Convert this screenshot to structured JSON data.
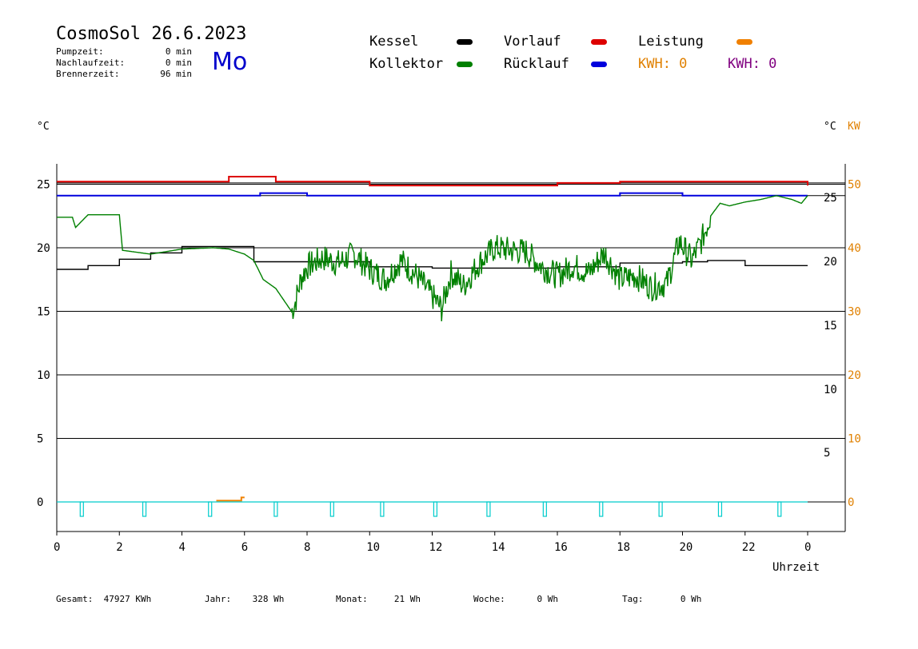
{
  "header": {
    "title": "CosmoSol 26.6.2023",
    "day": "Mo",
    "stats": [
      {
        "label": "Pumpzeit:",
        "value": "0 min"
      },
      {
        "label": "Nachlaufzeit:",
        "value": "0 min"
      },
      {
        "label": "Brennerzeit:",
        "value": "96 min"
      }
    ]
  },
  "legend": {
    "kessel": "Kessel",
    "kollektor": "Kollektor",
    "vorlauf": "Vorlauf",
    "ruecklauf": "Rücklauf",
    "leistung": "Leistung",
    "kwh1": "KWH: 0",
    "kwh2": "KWH: 0",
    "colors": {
      "kessel": "#000000",
      "kollektor": "#008000",
      "vorlauf": "#dd0000",
      "ruecklauf": "#0000dd",
      "leistung": "#f08000",
      "pump": "#00cccc"
    }
  },
  "axes": {
    "left_unit": "°C",
    "right_unit_1": "°C",
    "right_unit_2": "KW",
    "xlabel": "Uhrzeit"
  },
  "footer": [
    {
      "label": "Gesamt:",
      "value": "47927 KWh"
    },
    {
      "label": "Jahr:",
      "value": "328 Wh"
    },
    {
      "label": "Monat:",
      "value": "21 Wh"
    },
    {
      "label": "Woche:",
      "value": "0 Wh"
    },
    {
      "label": "Tag:",
      "value": "0 Wh"
    }
  ],
  "chart_data": {
    "type": "line",
    "xlim": [
      0,
      24
    ],
    "ylim": [
      -2,
      27
    ],
    "x_ticks": [
      "0",
      "2",
      "4",
      "6",
      "8",
      "10",
      "12",
      "14",
      "16",
      "18",
      "20",
      "22",
      "0"
    ],
    "y_ticks_left": [
      "0",
      "5",
      "10",
      "15",
      "20",
      "25"
    ],
    "y_ticks_right_temp": [
      "5",
      "10",
      "15",
      "20",
      "25"
    ],
    "y_ticks_right_kw": [
      "0",
      "10",
      "20",
      "30",
      "40",
      "50"
    ],
    "series": [
      {
        "name": "Vorlauf",
        "x": [
          0,
          3,
          5,
          5.5,
          6.5,
          7,
          9,
          10,
          12,
          13,
          14,
          16,
          18,
          20,
          22,
          24
        ],
        "y": [
          25.2,
          25.2,
          25.2,
          25.6,
          25.6,
          25.2,
          25.2,
          24.9,
          24.9,
          24.9,
          24.9,
          25.1,
          25.2,
          25.2,
          25.2,
          24.9
        ]
      },
      {
        "name": "Rücklauf",
        "x": [
          0,
          5,
          6.5,
          8,
          12,
          16,
          18,
          20,
          22,
          24
        ],
        "y": [
          24.1,
          24.1,
          24.3,
          24.1,
          24.1,
          24.1,
          24.3,
          24.1,
          24.1,
          24.1
        ]
      },
      {
        "name": "Kessel",
        "x": [
          0,
          1,
          2,
          3,
          4,
          5,
          5.9,
          6.3,
          8,
          10,
          12,
          14,
          16,
          18,
          20,
          20.8,
          22,
          24
        ],
        "y": [
          18.3,
          18.6,
          19.1,
          19.6,
          20.1,
          20.1,
          20.1,
          18.9,
          18.9,
          18.5,
          18.4,
          18.4,
          18.5,
          18.8,
          18.9,
          19.0,
          18.6,
          18.6
        ]
      },
      {
        "name": "Kollektor",
        "x": [
          0,
          0.5,
          0.6,
          1,
          2,
          2.1,
          3,
          4,
          5,
          5.5,
          6,
          6.3,
          6.6,
          7,
          7.5,
          7.6,
          7.8,
          8,
          8.5,
          9,
          9.5,
          10,
          10.5,
          11,
          11.5,
          12,
          12.3,
          12.6,
          13,
          13.5,
          14,
          14.5,
          15,
          15.5,
          16,
          16.5,
          17,
          17.5,
          18,
          18.5,
          19,
          19.5,
          19.9,
          20.3,
          20.6,
          20.9,
          21.2,
          21.5,
          22,
          22.5,
          23,
          23.5,
          23.8,
          24
        ],
        "y": [
          22.4,
          22.4,
          21.6,
          22.6,
          22.6,
          19.8,
          19.5,
          19.9,
          20.0,
          19.9,
          19.5,
          19.0,
          17.5,
          16.8,
          15.0,
          15.5,
          17.5,
          18.5,
          19.2,
          18.8,
          19.5,
          18.3,
          17.5,
          19.0,
          17.8,
          16.2,
          15.2,
          18.0,
          17.0,
          18.8,
          20.0,
          19.8,
          19.7,
          18.5,
          17.8,
          18.6,
          18.0,
          19.6,
          17.5,
          17.8,
          16.9,
          17.2,
          20.5,
          19.0,
          20.5,
          22.5,
          23.5,
          23.3,
          23.6,
          23.8,
          24.1,
          23.8,
          23.5,
          24.1
        ]
      },
      {
        "name": "Leistung",
        "x": [
          5.1,
          5.9,
          5.9,
          6.0
        ],
        "y": [
          0.1,
          0.1,
          0.35,
          0.35
        ]
      }
    ],
    "pump_pulses_hours": [
      0.8,
      2.8,
      4.9,
      7.0,
      8.8,
      10.4,
      12.1,
      13.8,
      15.6,
      17.4,
      19.3,
      21.2,
      23.1
    ]
  }
}
